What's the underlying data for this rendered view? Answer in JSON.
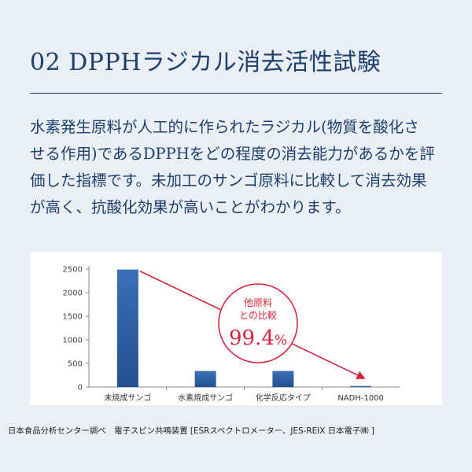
{
  "header": {
    "title": "02 DPPHラジカル消去活性試験"
  },
  "description": {
    "lines": [
      "水素発生原料が人工的に作られたラジカル(物質を酸化さ",
      "せる作用)であるDPPHをどの程度の消去能力があるかを評",
      "価した指標です。未加工のサンゴ原料に比較して消去効果",
      "が高く、抗酸化効果が高いことがわかります。"
    ]
  },
  "callout": {
    "line1": "他原料",
    "line2": "との比較",
    "value": "99.4",
    "unit": "%"
  },
  "source": "日本食品分析センター調べ　電子スピン共鳴装置 [ESRスペクトロメーター、JES-REIX  日本電子㈱ ]",
  "colors": {
    "title": "#1d3f6e",
    "bar": "#2f5fa4",
    "accent": "#d8243a",
    "background": "#e9eff4"
  },
  "chart_data": {
    "type": "bar",
    "categories": [
      "未焼成サンゴ",
      "水素焼成サンゴ",
      "化学反応タイプ",
      "NADH-1000"
    ],
    "values": [
      2490,
      340,
      340,
      22
    ],
    "ylim": [
      0,
      2500
    ],
    "yticks": [
      0,
      500,
      1000,
      1500,
      2000,
      2500
    ],
    "grid": false,
    "title": "",
    "xlabel": "",
    "ylabel": ""
  }
}
